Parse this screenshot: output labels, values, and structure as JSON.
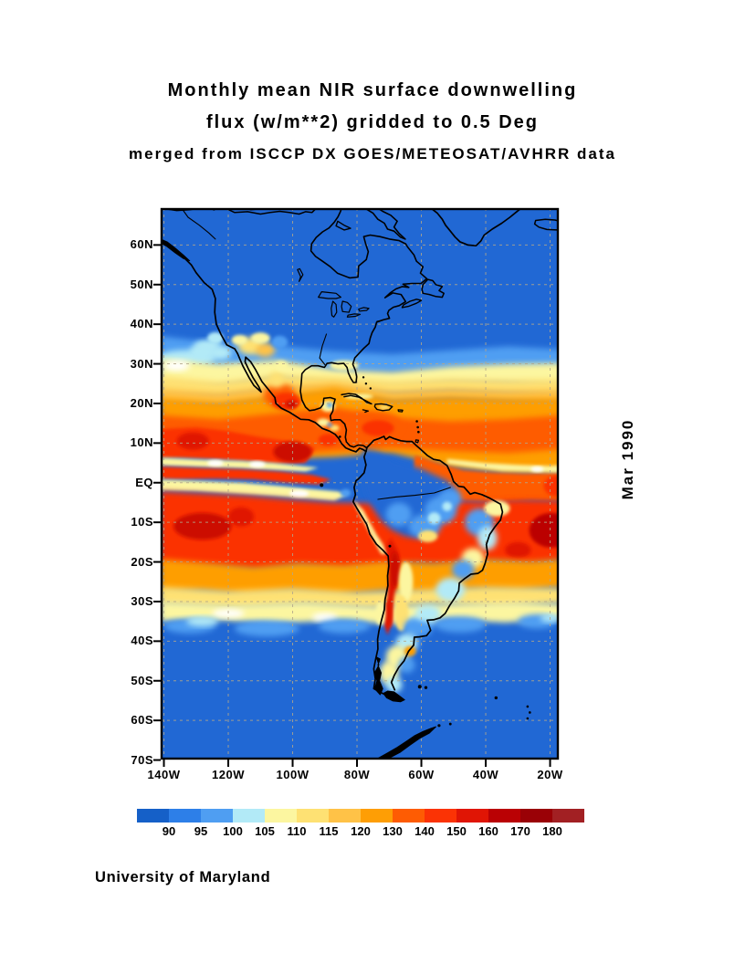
{
  "title": {
    "line1": "Monthly mean NIR surface downwelling",
    "line2": "flux (w/m**2) gridded to 0.5 Deg",
    "line3": "merged from ISCCP DX GOES/METEOSAT/AVHRR data"
  },
  "side_label": "Mar 1990",
  "credit": "University of Maryland",
  "chart_data": {
    "type": "heatmap",
    "title": "Monthly mean NIR surface downwelling flux (w/m**2) gridded to 0.5 Deg",
    "subtitle": "merged from ISCCP DX GOES/METEOSAT/AVHRR data",
    "date": "Mar 1990",
    "units": "w/m**2",
    "region": "Americas",
    "lat_ticks": [
      "60N",
      "50N",
      "40N",
      "30N",
      "20N",
      "10N",
      "EQ",
      "10S",
      "20S",
      "30S",
      "40S",
      "50S",
      "60S",
      "70S"
    ],
    "lon_ticks": [
      "140W",
      "120W",
      "100W",
      "80W",
      "60W",
      "40W",
      "20W"
    ],
    "colorbar_values": [
      90,
      95,
      100,
      105,
      110,
      115,
      120,
      130,
      140,
      150,
      160,
      170,
      180
    ],
    "colorbar_colors": [
      "#1560c8",
      "#2d7fe8",
      "#4f9ef2",
      "#b2eaf7",
      "#fcf6a0",
      "#fee173",
      "#ffc247",
      "#fe9e05",
      "#fe5c03",
      "#fb3305",
      "#e01505",
      "#ba0104",
      "#9a0106",
      "#a22023"
    ],
    "summary": "High-latitude oceans and North America near 90-95 w/m**2 (blue); subtropical transition bands 100-115 near 30N and 30S; broad 120-150 (orange) belts 25N-5N and 5S-20S with >160 (dark red) cores in the central Pacific near 10S and tropical Atlantic near 12S; cloudy Amazon basin and Colombia low near 90-100; Andes ridge high >150 along 68W from 15S to 38S"
  }
}
